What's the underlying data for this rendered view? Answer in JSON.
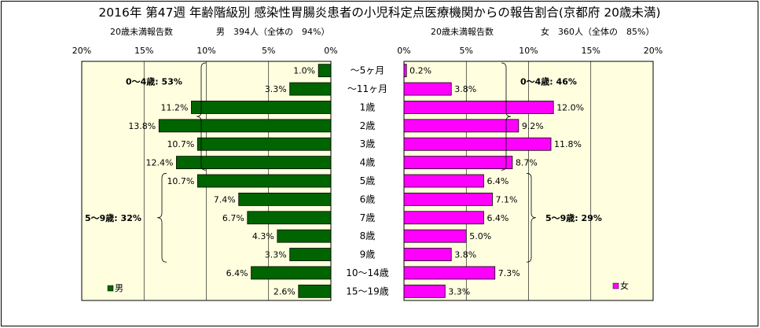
{
  "chart_data": {
    "type": "bar",
    "title": "2016年 第47週 年齢階級別 感染性胃腸炎患者の小児科定点医療機関からの報告割合(京都府 20歳未満)",
    "categories": [
      "～5ヶ月",
      "～11ヶ月",
      "1歳",
      "2歳",
      "3歳",
      "4歳",
      "5歳",
      "6歳",
      "7歳",
      "8歳",
      "9歳",
      "10～14歳",
      "15～19歳"
    ],
    "xlim": [
      0,
      20
    ],
    "x_tick_labels": [
      "0%",
      "5%",
      "10%",
      "15%",
      "20%"
    ],
    "grid": true,
    "series": [
      {
        "name": "男",
        "header_label": "20歳未満報告数",
        "header_count": "男　394人（全体の　94%）",
        "color": "#006400",
        "values": [
          1.0,
          3.3,
          11.2,
          13.8,
          10.7,
          12.4,
          10.7,
          7.4,
          6.7,
          4.3,
          3.3,
          6.4,
          2.6
        ],
        "value_labels": [
          "1.0%",
          "3.3%",
          "11.2%",
          "13.8%",
          "10.7%",
          "12.4%",
          "10.7%",
          "7.4%",
          "6.7%",
          "4.3%",
          "3.3%",
          "6.4%",
          "2.6%"
        ],
        "legend_position": "bottom-left",
        "annotations": [
          {
            "text": "0～4歳: 53%",
            "from_index": 0,
            "to_index": 5
          },
          {
            "text": "5～9歳: 32%",
            "from_index": 6,
            "to_index": 10
          }
        ]
      },
      {
        "name": "女",
        "header_label": "20歳未満報告数",
        "header_count": "女　360人（全体の　85%）",
        "color": "#ff00ff",
        "values": [
          0.2,
          3.8,
          12.0,
          9.2,
          11.8,
          8.7,
          6.4,
          7.1,
          6.4,
          5.0,
          3.8,
          7.3,
          3.3
        ],
        "value_labels": [
          "0.2%",
          "3.8%",
          "12.0%",
          "9.2%",
          "11.8%",
          "8.7%",
          "6.4%",
          "7.1%",
          "6.4%",
          "5.0%",
          "3.8%",
          "7.3%",
          "3.3%"
        ],
        "legend_position": "bottom-right",
        "annotations": [
          {
            "text": "0～4歳: 46%",
            "from_index": 0,
            "to_index": 5
          },
          {
            "text": "5～9歳: 29%",
            "from_index": 6,
            "to_index": 10
          }
        ]
      }
    ]
  },
  "colors": {
    "plot_background": "#ffffe0",
    "male_bar": "#006400",
    "female_bar": "#ff00ff"
  }
}
